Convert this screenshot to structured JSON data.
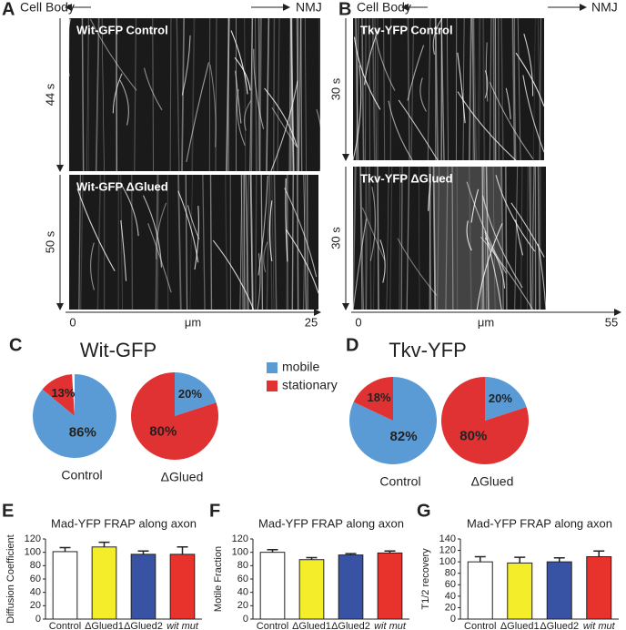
{
  "kymographs": [
    {
      "panel": "A",
      "left_label": "Cell Body",
      "right_label": "NMJ",
      "tracks": [
        {
          "label": "Wit-GFP Control",
          "duration": "44 s"
        },
        {
          "label": "Wit-GFP ΔGlued",
          "duration": "50 s"
        }
      ],
      "x_axis": {
        "start": "0",
        "unit": "μm",
        "end": "25"
      }
    },
    {
      "panel": "B",
      "left_label": "Cell Body",
      "right_label": "NMJ",
      "tracks": [
        {
          "label": "Tkv-YFP Control",
          "duration": "30 s"
        },
        {
          "label": "Tkv-YFP ΔGlued",
          "duration": "30 s"
        }
      ],
      "x_axis": {
        "start": "0",
        "unit": "μm",
        "end": "55"
      }
    }
  ],
  "chart_data": [
    {
      "type": "pie",
      "panel": "C",
      "title": "Wit-GFP",
      "categories": [
        "mobile",
        "stationary"
      ],
      "colors": [
        "#5b9bd5",
        "#e03232"
      ],
      "pies": [
        {
          "caption": "Control",
          "values": [
            86,
            13
          ],
          "value_labels": [
            "86%",
            "13%"
          ]
        },
        {
          "caption": "ΔGlued",
          "values": [
            20,
            80
          ],
          "value_labels": [
            "20%",
            "80%"
          ]
        }
      ]
    },
    {
      "type": "pie",
      "panel": "D",
      "title": "Tkv-YFP",
      "colors": [
        "#5b9bd5",
        "#e03232"
      ],
      "pies": [
        {
          "caption": "Control",
          "values": [
            82,
            18
          ],
          "value_labels": [
            "82%",
            "18%"
          ]
        },
        {
          "caption": "ΔGlued",
          "values": [
            20,
            80
          ],
          "value_labels": [
            "20%",
            "80%"
          ]
        }
      ]
    },
    {
      "type": "bar",
      "panel": "E",
      "title": "Mad-YFP FRAP along axon",
      "ylabel": "Diffusion Coefficient",
      "categories": [
        "Control",
        "ΔGlued1",
        "ΔGlued2",
        "wit mut"
      ],
      "colors": [
        "#ffffff",
        "#f4ee2a",
        "#3953a4",
        "#e8322c"
      ],
      "values": [
        101,
        108,
        97,
        97
      ],
      "errors": [
        6,
        7,
        5,
        11
      ],
      "ylim": [
        0,
        120
      ],
      "yticks": [
        0,
        20,
        40,
        60,
        80,
        100,
        120
      ]
    },
    {
      "type": "bar",
      "panel": "F",
      "title": "Mad-YFP FRAP along axon",
      "ylabel": "Motile Fraction",
      "categories": [
        "Control",
        "ΔGlued1",
        "ΔGlued2",
        "wit mut"
      ],
      "colors": [
        "#ffffff",
        "#f4ee2a",
        "#3953a4",
        "#e8322c"
      ],
      "values": [
        100,
        89,
        96,
        99
      ],
      "errors": [
        4,
        3,
        2,
        3
      ],
      "ylim": [
        0,
        120
      ],
      "yticks": [
        0,
        20,
        40,
        60,
        80,
        100,
        120
      ]
    },
    {
      "type": "bar",
      "panel": "G",
      "title": "Mad-YFP FRAP along axon",
      "ylabel": "T1/2 recovery",
      "categories": [
        "Control",
        "ΔGlued1",
        "ΔGlued2",
        "wit mut"
      ],
      "colors": [
        "#ffffff",
        "#f4ee2a",
        "#3953a4",
        "#e8322c"
      ],
      "values": [
        100,
        98,
        100,
        109
      ],
      "errors": [
        9,
        10,
        7,
        10
      ],
      "ylim": [
        0,
        140
      ],
      "yticks": [
        0,
        20,
        40,
        60,
        80,
        100,
        120,
        140
      ]
    }
  ]
}
